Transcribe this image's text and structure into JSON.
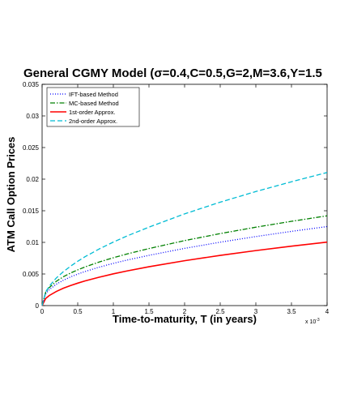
{
  "chart_data": {
    "type": "line",
    "title": "General CGMY Model (σ=0.4,C=0.5,G=2,M=3.6,Y=1.5",
    "xlabel": "Time-to-maturity, T (in years)",
    "ylabel": "ATM Call Option Prices",
    "x_exponent_label": "x 10",
    "x_exponent_power": "-3",
    "xlim": [
      0,
      0.004
    ],
    "ylim": [
      0,
      0.035
    ],
    "x_scale_factor": 1000,
    "x_ticks": [
      0,
      0.0005,
      0.001,
      0.0015,
      0.002,
      0.0025,
      0.003,
      0.0035,
      0.004
    ],
    "x_tick_labels": [
      "0",
      "0.5",
      "1",
      "1.5",
      "2",
      "2.5",
      "3",
      "3.5",
      "4"
    ],
    "y_ticks": [
      0,
      0.005,
      0.01,
      0.015,
      0.02,
      0.025,
      0.03,
      0.035
    ],
    "y_tick_labels": [
      "0",
      "0.005",
      "0.01",
      "0.015",
      "0.02",
      "0.025",
      "0.03",
      "0.035"
    ],
    "grid": false,
    "legend_position": "top-left",
    "x": [
      5e-05,
      0.0001,
      0.0002,
      0.0003,
      0.0004,
      0.0005,
      0.0006,
      0.0008,
      0.001,
      0.0012,
      0.0015,
      0.002,
      0.0025,
      0.003,
      0.0035,
      0.004
    ],
    "series": [
      {
        "name": "IFT-based Method",
        "color": "#0000ff",
        "style": "dotted",
        "values": [
          0.00186,
          0.00251,
          0.00339,
          0.00402,
          0.00454,
          0.00498,
          0.00538,
          0.00607,
          0.00668,
          0.00722,
          0.00795,
          0.00905,
          0.01003,
          0.01092,
          0.01174,
          0.0125
        ]
      },
      {
        "name": "MC-based Method",
        "color": "#008000",
        "style": "dashdot",
        "values": [
          0.00211,
          0.00285,
          0.00385,
          0.00457,
          0.00515,
          0.00565,
          0.0061,
          0.00689,
          0.00757,
          0.00819,
          0.00902,
          0.01028,
          0.01139,
          0.0124,
          0.01333,
          0.0142
        ]
      },
      {
        "name": "1st-order Approx.",
        "color": "#ff0000",
        "style": "solid",
        "values": [
          0.00112,
          0.00159,
          0.00224,
          0.00275,
          0.00317,
          0.00355,
          0.00389,
          0.00449,
          0.00502,
          0.0055,
          0.00615,
          0.0071,
          0.00794,
          0.0087,
          0.0094,
          0.01004
        ]
      },
      {
        "name": "2nd-order Approx.",
        "color": "#00bcd4",
        "style": "dashed",
        "values": [
          0.00216,
          0.00307,
          0.00437,
          0.00538,
          0.00624,
          0.00701,
          0.00771,
          0.00895,
          0.01005,
          0.01105,
          0.01241,
          0.01451,
          0.01636,
          0.01804,
          0.01959,
          0.02105
        ]
      }
    ]
  }
}
